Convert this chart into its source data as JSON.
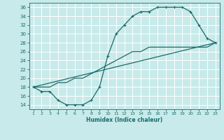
{
  "title": "",
  "xlabel": "Humidex (Indice chaleur)",
  "bg_color": "#c8eaea",
  "grid_color": "#ffffff",
  "line_color": "#1a6b6b",
  "xlim": [
    0.5,
    23.5
  ],
  "ylim": [
    13,
    37
  ],
  "xticks": [
    1,
    2,
    3,
    4,
    5,
    6,
    7,
    8,
    9,
    10,
    11,
    12,
    13,
    14,
    15,
    16,
    17,
    18,
    19,
    20,
    21,
    22,
    23
  ],
  "yticks": [
    14,
    16,
    18,
    20,
    22,
    24,
    26,
    28,
    30,
    32,
    34,
    36
  ],
  "line1_x": [
    1,
    2,
    3,
    4,
    5,
    6,
    7,
    8,
    9,
    10,
    11,
    12,
    13,
    14,
    15,
    16,
    17,
    18,
    19,
    20,
    21,
    22,
    23
  ],
  "line1_y": [
    18,
    17,
    17,
    15,
    14,
    14,
    14,
    15,
    18,
    25,
    30,
    32,
    34,
    35,
    35,
    36,
    36,
    36,
    36,
    35,
    32,
    29,
    28
  ],
  "line2_x": [
    1,
    2,
    3,
    4,
    5,
    6,
    7,
    8,
    9,
    10,
    11,
    12,
    13,
    14,
    15,
    16,
    17,
    18,
    19,
    20,
    21,
    22,
    23
  ],
  "line2_y": [
    18,
    18,
    18,
    19,
    19,
    20,
    20,
    21,
    22,
    23,
    24,
    25,
    26,
    26,
    27,
    27,
    27,
    27,
    27,
    27,
    27,
    27,
    28
  ],
  "line3_x": [
    1,
    23
  ],
  "line3_y": [
    18,
    28
  ]
}
